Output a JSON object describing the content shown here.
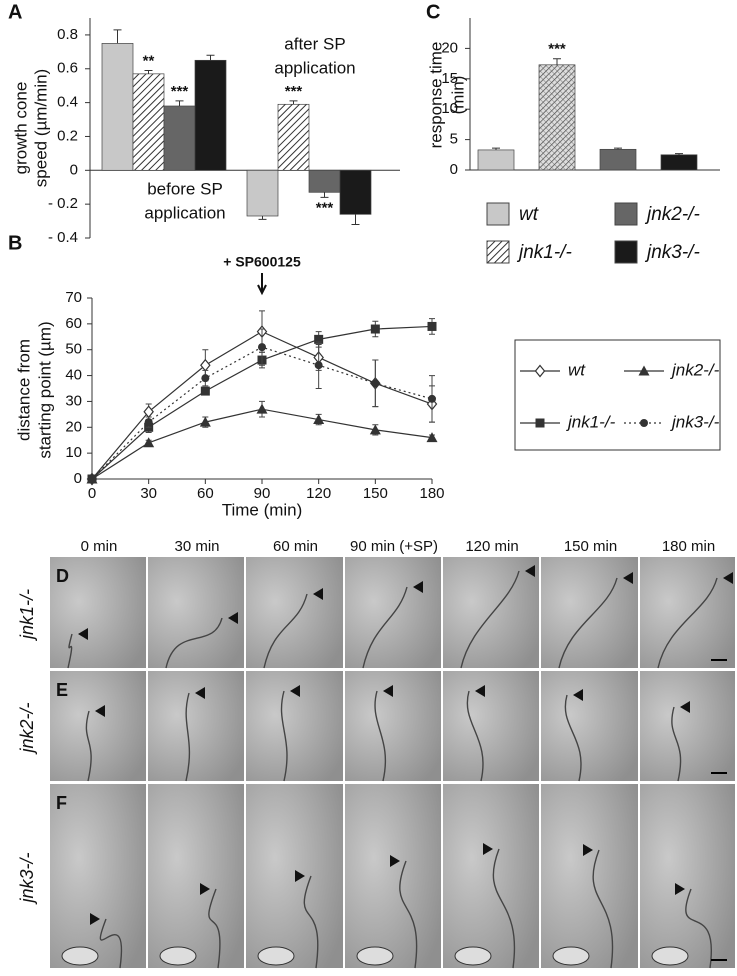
{
  "panel_letters": [
    "A",
    "B",
    "C"
  ],
  "chart_data": [
    {
      "type": "bar",
      "ylabel": [
        "growth cone",
        "speed (µm/min)"
      ],
      "categories": [
        [
          "before SP",
          "application"
        ],
        [
          "after SP",
          "application"
        ]
      ],
      "series": [
        {
          "name": "wt",
          "color": "#c8c8c8",
          "values": [
            0.75,
            -0.27
          ],
          "errors": [
            0.08,
            0.02
          ]
        },
        {
          "name": "jnk1-/-",
          "color": "#ffffff",
          "pattern": "hatch",
          "values": [
            0.57,
            0.39
          ],
          "errors": [
            0.02,
            0.02
          ],
          "significance": [
            "**",
            "***"
          ]
        },
        {
          "name": "jnk2-/-",
          "color": "#666666",
          "values": [
            0.38,
            -0.13
          ],
          "errors": [
            0.03,
            0.03
          ],
          "significance": [
            "***",
            "***"
          ]
        },
        {
          "name": "jnk3-/-",
          "color": "#1a1a1a",
          "values": [
            0.65,
            -0.26
          ],
          "errors": [
            0.03,
            0.06
          ]
        }
      ],
      "ylim": [
        -0.4,
        0.9
      ],
      "yticks": [
        {
          "value": -0.4,
          "label": "- 0.4"
        },
        {
          "value": -0.2,
          "label": "- 0.2"
        },
        0,
        0.2,
        0.4,
        0.6,
        0.8
      ]
    },
    {
      "type": "line",
      "xlabel": "Time (min)",
      "ylabel": [
        "distance from",
        "starting point (µm)"
      ],
      "annotation": {
        "text": "+ SP600125",
        "x": 90
      },
      "x": [
        0,
        30,
        60,
        90,
        120,
        150,
        180
      ],
      "series": [
        {
          "name": "wt",
          "color": "#333333",
          "marker": "diamond-open",
          "dash": "solid",
          "values": [
            0,
            26,
            44,
            57,
            47,
            37,
            29
          ],
          "errors": [
            0,
            3,
            6,
            8,
            5,
            9,
            7
          ]
        },
        {
          "name": "jnk1-/-",
          "color": "#333333",
          "marker": "square",
          "dash": "solid",
          "values": [
            0,
            20,
            34,
            46,
            54,
            58,
            59
          ],
          "errors": [
            0,
            2,
            1,
            3,
            3,
            3,
            3
          ]
        },
        {
          "name": "jnk2-/-",
          "color": "#333333",
          "marker": "triangle",
          "dash": "solid",
          "values": [
            0,
            14,
            22,
            27,
            23,
            19,
            16
          ],
          "errors": [
            0,
            1,
            2,
            3,
            2,
            2,
            1
          ]
        },
        {
          "name": "jnk3-/-",
          "color": "#333333",
          "marker": "circle",
          "dash": "dotted",
          "values": [
            0,
            22,
            39,
            51,
            44,
            37,
            31
          ],
          "errors": [
            0,
            2,
            3,
            7,
            9,
            9,
            9
          ]
        }
      ],
      "xlim": [
        0,
        180
      ],
      "xticks": [
        0,
        30,
        60,
        90,
        120,
        150,
        180
      ],
      "ylim": [
        0,
        70
      ],
      "yticks": [
        0,
        10,
        20,
        30,
        40,
        50,
        60,
        70
      ]
    },
    {
      "type": "bar",
      "ylabel": [
        "response time",
        "(min)"
      ],
      "categories": [
        "wt",
        "jnk1-/-",
        "jnk2-/-",
        "jnk3-/-"
      ],
      "values": [
        3.3,
        17.3,
        3.4,
        2.5
      ],
      "errors": [
        0.3,
        1.0,
        0.2,
        0.2
      ],
      "significance": [
        null,
        "***",
        null,
        null
      ],
      "colors": [
        "#c8c8c8",
        "#ffffff",
        "#666666",
        "#1a1a1a"
      ],
      "patterns": [
        null,
        "xhatch",
        null,
        null
      ],
      "ylim": [
        0,
        25
      ],
      "yticks": [
        0,
        5,
        10,
        15,
        20
      ]
    }
  ],
  "micrographs": {
    "columns": [
      "0 min",
      "30 min",
      "60 min",
      "90 min (+SP)",
      "120 min",
      "150 min",
      "180 min"
    ],
    "rows": [
      {
        "letter": "D",
        "label": "jnk1-/-"
      },
      {
        "letter": "E",
        "label": "jnk2-/-"
      },
      {
        "letter": "F",
        "label": "jnk3-/-"
      }
    ]
  }
}
